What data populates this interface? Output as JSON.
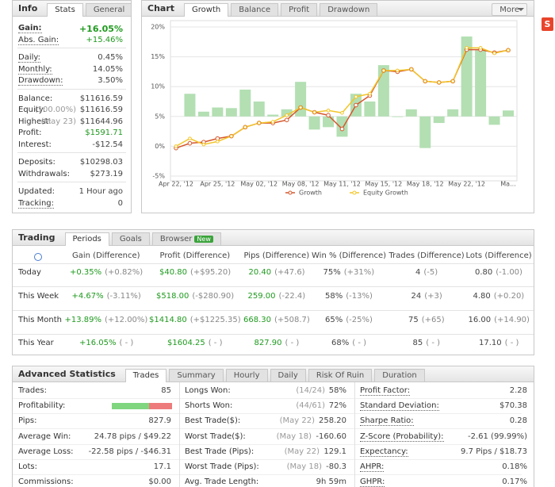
{
  "info": {
    "title": "Info",
    "tabs": [
      "Stats",
      "General"
    ],
    "groups": [
      [
        {
          "label": "Gain:",
          "value": "+16.05%",
          "color": "#1f9a1f"
        },
        {
          "label": "Abs. Gain:",
          "value": "+15.46%",
          "color": "#1f9a1f"
        }
      ],
      [
        {
          "label": "Daily:",
          "value": "0.45%"
        },
        {
          "label": "Monthly:",
          "value": "14.05%"
        },
        {
          "label": "Drawdown:",
          "value": "3.50%"
        }
      ],
      [
        {
          "label": "Balance:",
          "value": "$11616.59"
        },
        {
          "label": "Equity:",
          "note": "(100.00%)",
          "value": "$11616.59"
        },
        {
          "label": "Highest:",
          "note": "(May 23)",
          "value": "$11644.96"
        },
        {
          "label": "Profit:",
          "value": "$1591.71",
          "color": "#1f9a1f"
        },
        {
          "label": "Interest:",
          "value": "-$12.54"
        }
      ],
      [
        {
          "label": "Deposits:",
          "value": "$10298.03"
        },
        {
          "label": "Withdrawals:",
          "value": "$273.19"
        }
      ],
      [
        {
          "label": "Updated:",
          "value": "1 Hour ago"
        },
        {
          "label": "Tracking:",
          "value": "0"
        }
      ]
    ]
  },
  "chart_panel": {
    "title": "Chart",
    "tabs": [
      "Growth",
      "Balance",
      "Profit",
      "Drawdown"
    ],
    "more": "More"
  },
  "side_icon": "S",
  "chart_data": {
    "type": "bar-line",
    "categories": [
      "Apr 22, '12",
      null,
      null,
      "Apr 25, '12",
      null,
      null,
      "May 02, '12",
      null,
      null,
      "May 08, '12",
      null,
      null,
      "May 11, '12",
      null,
      null,
      "May 15, '12",
      null,
      null,
      "May 18, '12",
      null,
      null,
      "May 22, '12",
      null,
      null,
      "Ma..."
    ],
    "bar_values": [
      null,
      8.8,
      5.8,
      6.5,
      6.4,
      9.5,
      7.5,
      5.3,
      6.2,
      10.8,
      2.8,
      3.2,
      1.6,
      8.8,
      7.5,
      13.6,
      4.9,
      6.2,
      -0.3,
      3.9,
      6.2,
      18.4,
      16.1,
      3.6,
      6.0
    ],
    "bar_color": "#b3dfb3",
    "bar_base": 5,
    "series": [
      {
        "name": "Growth",
        "color": "#d5572c",
        "values": [
          -0.3,
          0.5,
          0.7,
          1.3,
          1.7,
          3.2,
          3.9,
          3.9,
          4.4,
          6.5,
          5.7,
          5.2,
          2.9,
          6.9,
          8.5,
          12.7,
          12.5,
          12.9,
          10.9,
          10.7,
          10.9,
          16.2,
          16.2,
          15.7,
          16.1
        ]
      },
      {
        "name": "Equity Growth",
        "color": "#f2c62a",
        "values": [
          0,
          1.3,
          0.3,
          0.8,
          1.7,
          3.2,
          3.9,
          4.1,
          5.2,
          6.5,
          5.7,
          6.0,
          5.6,
          8.3,
          8.8,
          12.7,
          12.7,
          12.9,
          10.9,
          10.7,
          10.9,
          16.5,
          16.5,
          15.6,
          16.1
        ]
      }
    ],
    "ylim": [
      -5,
      20
    ],
    "yticks": [
      {
        "value": -5,
        "label": "-5%"
      },
      {
        "value": 0,
        "label": "0%"
      },
      {
        "value": 5,
        "label": "5%"
      },
      {
        "value": 10,
        "label": "10%"
      },
      {
        "value": 15,
        "label": "15%"
      },
      {
        "value": 20,
        "label": "20%"
      }
    ],
    "grid": true
  },
  "trading": {
    "title": "Trading",
    "tabs": [
      "Periods",
      "Goals",
      "Browser"
    ],
    "new_badge": "New",
    "columns": [
      "Gain (Difference)",
      "Profit (Difference)",
      "Pips (Difference)",
      "Win % (Difference)",
      "Trades (Difference)",
      "Lots (Difference)"
    ],
    "value_colors": [
      "#1f9a1f",
      "#1f9a1f",
      "#1f9a1f",
      "#444",
      "#444",
      "#444"
    ],
    "rows": [
      {
        "label": "Today",
        "cells": [
          {
            "value": "+0.35%",
            "diff": "(+0.82%)"
          },
          {
            "value": "$40.80",
            "diff": "(+$95.20)"
          },
          {
            "value": "20.40",
            "diff": "(+47.6)"
          },
          {
            "value": "75%",
            "diff": "(+31%)"
          },
          {
            "value": "4",
            "diff": "(-5)"
          },
          {
            "value": "0.80",
            "diff": "(-1.00)"
          }
        ]
      },
      {
        "label": "This Week",
        "cells": [
          {
            "value": "+4.67%",
            "diff": "(-3.11%)"
          },
          {
            "value": "$518.00",
            "diff": "(-$280.90)"
          },
          {
            "value": "259.00",
            "diff": "(-22.4)"
          },
          {
            "value": "58%",
            "diff": "(-13%)"
          },
          {
            "value": "24",
            "diff": "(+3)"
          },
          {
            "value": "4.80",
            "diff": "(+0.20)"
          }
        ]
      },
      {
        "label": "This Month",
        "cells": [
          {
            "value": "+13.89%",
            "diff": "(+12.00%)"
          },
          {
            "value": "$1414.80",
            "diff": "(+$1225.35)"
          },
          {
            "value": "668.30",
            "diff": "(+508.7)"
          },
          {
            "value": "65%",
            "diff": "(-25%)"
          },
          {
            "value": "75",
            "diff": "(+65)"
          },
          {
            "value": "16.00",
            "diff": "(+14.90)"
          }
        ]
      },
      {
        "label": "This Year",
        "cells": [
          {
            "value": "+16.05%",
            "diff": "( - )"
          },
          {
            "value": "$1604.25",
            "diff": "( - )"
          },
          {
            "value": "827.90",
            "diff": "( - )"
          },
          {
            "value": "68%",
            "diff": "( - )"
          },
          {
            "value": "85",
            "diff": "( - )"
          },
          {
            "value": "17.10",
            "diff": "( - )"
          }
        ]
      }
    ]
  },
  "advanced": {
    "title": "Advanced Statistics",
    "tabs": [
      "Trades",
      "Summary",
      "Hourly",
      "Daily",
      "Risk Of Ruin",
      "Duration"
    ],
    "columns": [
      [
        {
          "label": "Trades:",
          "value": "85"
        },
        {
          "label": "Profitability:"
        },
        {
          "label": "Pips:",
          "value": "827.9"
        },
        {
          "label": "Average Win:",
          "value": "24.78 pips / $49.22"
        },
        {
          "label": "Average Loss:",
          "value": "-22.58 pips / -$46.31"
        },
        {
          "label": "Lots:",
          "value": "17.1"
        },
        {
          "label": "Commissions:",
          "value": "$0.00"
        }
      ],
      [
        {
          "label": "Longs Won:",
          "note": "(14/24)",
          "value": "58%"
        },
        {
          "label": "Shorts Won:",
          "note": "(44/61)",
          "value": "72%"
        },
        {
          "label": "Best Trade($):",
          "note": "(May 22)",
          "value": "258.20"
        },
        {
          "label": "Worst Trade($):",
          "note": "(May 18)",
          "value": "-160.60"
        },
        {
          "label": "Best Trade (Pips):",
          "note": "(May 22)",
          "value": "129.1"
        },
        {
          "label": "Worst Trade (Pips):",
          "note": "(May 18)",
          "value": "-80.3"
        },
        {
          "label": "Avg. Trade Length:",
          "value": "9h 59m"
        }
      ],
      [
        {
          "label": "Profit Factor:",
          "value": "2.28"
        },
        {
          "label": "Standard Deviation:",
          "value": "$70.38"
        },
        {
          "label": "Sharpe Ratio:",
          "value": "0.28"
        },
        {
          "label": "Z-Score (Probability):",
          "value": "-2.61 (99.99%)"
        },
        {
          "label": "Expectancy:",
          "value": "9.7 Pips / $18.73"
        },
        {
          "label": "AHPR:",
          "value": "0.18%"
        },
        {
          "label": "GHPR:",
          "value": "0.17%"
        }
      ]
    ]
  }
}
